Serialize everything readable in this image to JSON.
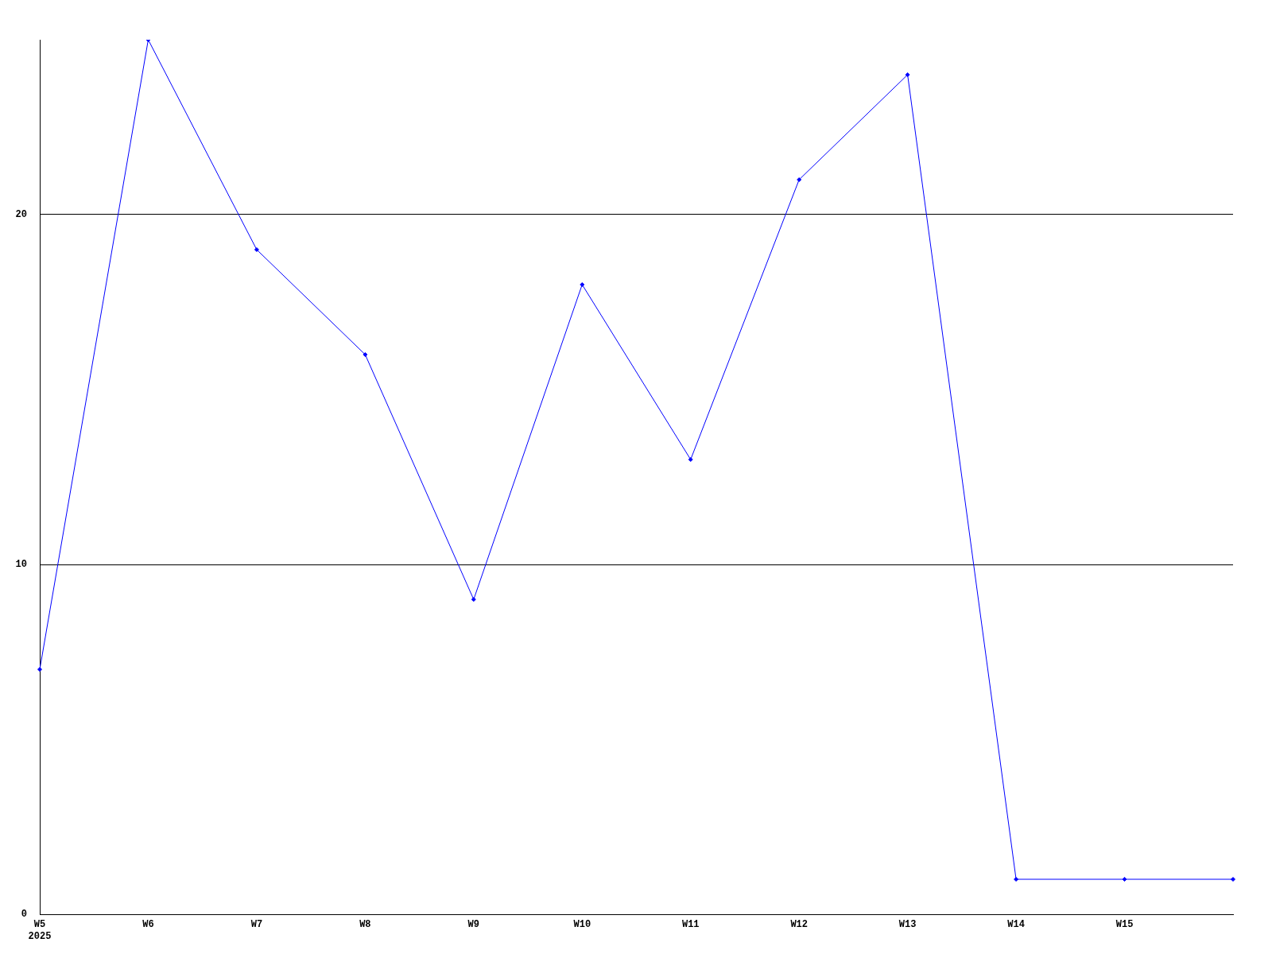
{
  "chart_data": {
    "type": "line",
    "categories": [
      "W5\n2025",
      "W6",
      "W7",
      "W8",
      "W9",
      "W10",
      "W11",
      "W12",
      "W13",
      "W14",
      "W15",
      null
    ],
    "series": [
      {
        "color": "#0000ff",
        "values": [
          7,
          25,
          19,
          16,
          9,
          18,
          13,
          21,
          24,
          1,
          1,
          1
        ]
      }
    ],
    "ylim": [
      0,
      25
    ],
    "yticks": [
      0,
      10,
      20
    ],
    "grid": "y",
    "legend": false,
    "marker": "diamond",
    "line_style": "solid"
  }
}
